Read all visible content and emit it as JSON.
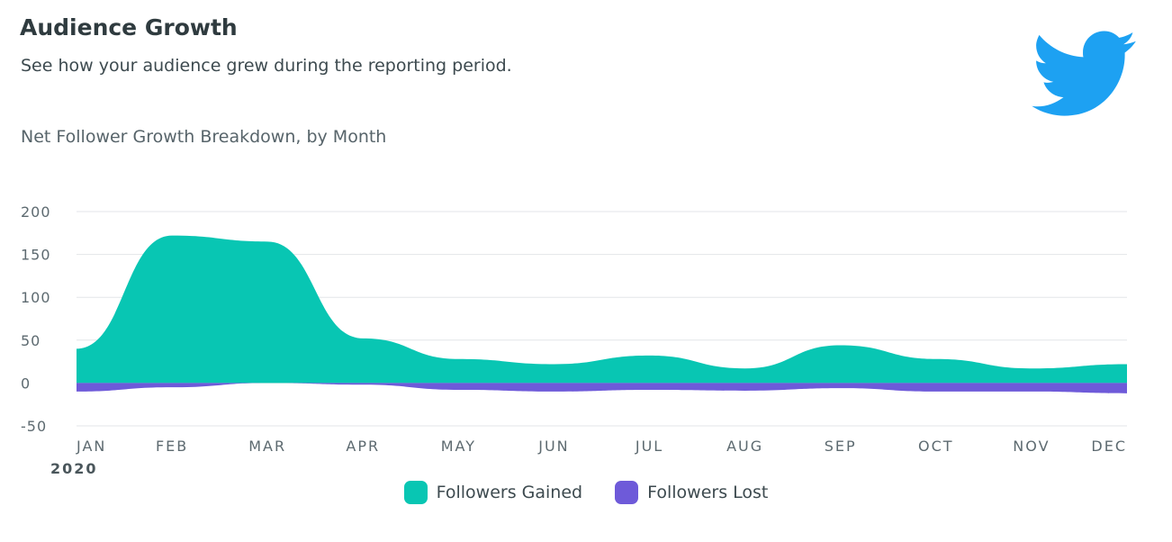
{
  "header": {
    "title": "Audience Growth",
    "subtitle": "See how your audience grew during the reporting period.",
    "logo_icon": "twitter-bird-icon"
  },
  "colors": {
    "gained": "#08c6b3",
    "lost": "#6e5ad9",
    "twitter": "#1da1f2",
    "grid": "#e3e6e8",
    "axis_text": "#5d6a70"
  },
  "chart_data": {
    "type": "area",
    "title": "Net Follower Growth Breakdown, by Month",
    "categories": [
      "JAN",
      "FEB",
      "MAR",
      "APR",
      "MAY",
      "JUN",
      "JUL",
      "AUG",
      "SEP",
      "OCT",
      "NOV",
      "DEC"
    ],
    "year_label": "2020",
    "y_ticks": [
      200,
      150,
      100,
      50,
      0,
      -50
    ],
    "ylim": [
      -50,
      200
    ],
    "grid": true,
    "legend_position": "bottom",
    "series": [
      {
        "name": "Followers Gained",
        "values": [
          40,
          172,
          165,
          52,
          28,
          22,
          32,
          17,
          44,
          28,
          17,
          22
        ]
      },
      {
        "name": "Followers Lost",
        "values": [
          -10,
          -5,
          0,
          -2,
          -8,
          -10,
          -8,
          -9,
          -6,
          -10,
          -10,
          -12
        ]
      }
    ]
  }
}
